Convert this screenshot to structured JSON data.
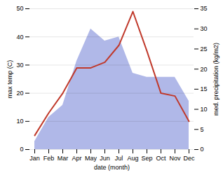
{
  "chart_data": {
    "type": "line",
    "categories": [
      "Jan",
      "Feb",
      "Mar",
      "Apr",
      "May",
      "Jun",
      "Jul",
      "Aug",
      "Sep",
      "Oct",
      "Nov",
      "Dec"
    ],
    "xlabel": "date (month)",
    "ylabel": "max temp (C)",
    "y2label": "med. precipitation (kg/m2)",
    "ylim": [
      0,
      50
    ],
    "yticks": [
      0,
      10,
      20,
      30,
      40,
      50
    ],
    "y2lim": [
      0,
      35
    ],
    "y2ticks": [
      0,
      5,
      10,
      15,
      20,
      25,
      30,
      35
    ],
    "grid": true,
    "series": [
      {
        "type": "area",
        "axis": "y2",
        "color": "#b0b8e8",
        "values": [
          2,
          8,
          11,
          22,
          30,
          27,
          28,
          19,
          18,
          18,
          18,
          12
        ]
      },
      {
        "type": "line",
        "color": "#c0392b",
        "values": [
          5,
          13,
          20,
          29,
          29,
          31,
          37,
          49,
          35,
          20,
          19,
          10
        ]
      }
    ]
  }
}
